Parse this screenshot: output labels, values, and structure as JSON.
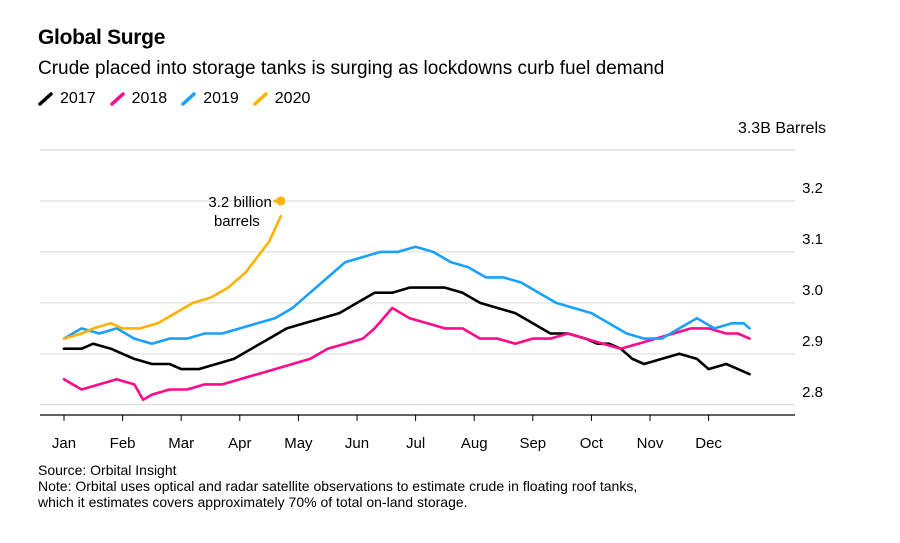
{
  "header": {
    "title": "Global Surge",
    "subtitle": "Crude placed into storage tanks is surging as lockdowns curb fuel demand"
  },
  "legend": [
    {
      "label": "2017",
      "color": "#000000"
    },
    {
      "label": "2018",
      "color": "#ff0a8c"
    },
    {
      "label": "2019",
      "color": "#1aa0ff"
    },
    {
      "label": "2020",
      "color": "#ffb200"
    }
  ],
  "footer": {
    "source": "Source: Orbital Insight",
    "note_line1": "Note: Orbital uses optical and radar satellite observations to estimate crude in floating roof tanks,",
    "note_line2": "which it estimates covers approximately 70% of total on-land storage."
  },
  "chart_data": {
    "type": "line",
    "unit_label": "3.3B Barrels",
    "ylim": [
      2.78,
      3.3
    ],
    "yticks": [
      "3.2",
      "3.1",
      "3.0",
      "2.9",
      "2.8"
    ],
    "ytick_values": [
      3.2,
      3.1,
      3.0,
      2.9,
      2.8
    ],
    "xlim": [
      0,
      11.8
    ],
    "categories": [
      "Jan",
      "Feb",
      "Mar",
      "Apr",
      "May",
      "Jun",
      "Jul",
      "Aug",
      "Sep",
      "Oct",
      "Nov",
      "Dec"
    ],
    "grid": true,
    "legend_position": "top-left",
    "annotation": {
      "line1": "3.2 billion",
      "line2": "barrels",
      "month": 3.7,
      "value": 3.2
    },
    "series": [
      {
        "name": "2017",
        "color": "#000000",
        "x": [
          0,
          0.3,
          0.5,
          0.8,
          1.2,
          1.5,
          1.8,
          2.0,
          2.3,
          2.6,
          2.9,
          3.2,
          3.5,
          3.8,
          4.1,
          4.4,
          4.7,
          5.0,
          5.3,
          5.6,
          5.9,
          6.2,
          6.5,
          6.8,
          7.1,
          7.4,
          7.7,
          8.0,
          8.3,
          8.6,
          8.9,
          9.1,
          9.3,
          9.5,
          9.7,
          9.9,
          10.2,
          10.5,
          10.8,
          11.0,
          11.3,
          11.5,
          11.7
        ],
        "values": [
          2.91,
          2.91,
          2.92,
          2.91,
          2.89,
          2.88,
          2.88,
          2.87,
          2.87,
          2.88,
          2.89,
          2.91,
          2.93,
          2.95,
          2.96,
          2.97,
          2.98,
          3.0,
          3.02,
          3.02,
          3.03,
          3.03,
          3.03,
          3.02,
          3.0,
          2.99,
          2.98,
          2.96,
          2.94,
          2.94,
          2.93,
          2.92,
          2.92,
          2.91,
          2.89,
          2.88,
          2.89,
          2.9,
          2.89,
          2.87,
          2.88,
          2.87,
          2.86
        ]
      },
      {
        "name": "2018",
        "color": "#ff0a8c",
        "x": [
          0,
          0.3,
          0.6,
          0.9,
          1.2,
          1.35,
          1.5,
          1.8,
          2.1,
          2.4,
          2.7,
          3.0,
          3.3,
          3.6,
          3.9,
          4.2,
          4.5,
          4.8,
          5.1,
          5.3,
          5.6,
          5.9,
          6.2,
          6.5,
          6.8,
          7.1,
          7.4,
          7.7,
          8.0,
          8.3,
          8.6,
          8.9,
          9.2,
          9.5,
          9.8,
          10.1,
          10.4,
          10.7,
          11.0,
          11.3,
          11.5,
          11.7
        ],
        "values": [
          2.85,
          2.83,
          2.84,
          2.85,
          2.84,
          2.81,
          2.82,
          2.83,
          2.83,
          2.84,
          2.84,
          2.85,
          2.86,
          2.87,
          2.88,
          2.89,
          2.91,
          2.92,
          2.93,
          2.95,
          2.99,
          2.97,
          2.96,
          2.95,
          2.95,
          2.93,
          2.93,
          2.92,
          2.93,
          2.93,
          2.94,
          2.93,
          2.92,
          2.91,
          2.92,
          2.93,
          2.94,
          2.95,
          2.95,
          2.94,
          2.94,
          2.93
        ]
      },
      {
        "name": "2019",
        "color": "#1aa0ff",
        "x": [
          0,
          0.3,
          0.6,
          0.9,
          1.2,
          1.5,
          1.8,
          2.1,
          2.4,
          2.7,
          3.0,
          3.3,
          3.6,
          3.9,
          4.2,
          4.5,
          4.8,
          5.1,
          5.4,
          5.7,
          6.0,
          6.3,
          6.6,
          6.9,
          7.2,
          7.5,
          7.8,
          8.1,
          8.4,
          8.7,
          9.0,
          9.3,
          9.6,
          9.9,
          10.2,
          10.5,
          10.8,
          11.1,
          11.4,
          11.6,
          11.7
        ],
        "values": [
          2.93,
          2.95,
          2.94,
          2.95,
          2.93,
          2.92,
          2.93,
          2.93,
          2.94,
          2.94,
          2.95,
          2.96,
          2.97,
          2.99,
          3.02,
          3.05,
          3.08,
          3.09,
          3.1,
          3.1,
          3.11,
          3.1,
          3.08,
          3.07,
          3.05,
          3.05,
          3.04,
          3.02,
          3.0,
          2.99,
          2.98,
          2.96,
          2.94,
          2.93,
          2.93,
          2.95,
          2.97,
          2.95,
          2.96,
          2.96,
          2.95
        ]
      },
      {
        "name": "2020",
        "color": "#ffb200",
        "x": [
          0,
          0.3,
          0.5,
          0.8,
          1.0,
          1.3,
          1.6,
          1.9,
          2.2,
          2.5,
          2.8,
          3.1,
          3.3,
          3.5,
          3.7
        ],
        "values": [
          2.93,
          2.94,
          2.95,
          2.96,
          2.95,
          2.95,
          2.96,
          2.98,
          3.0,
          3.01,
          3.03,
          3.06,
          3.09,
          3.12,
          3.17
        ]
      }
    ]
  }
}
